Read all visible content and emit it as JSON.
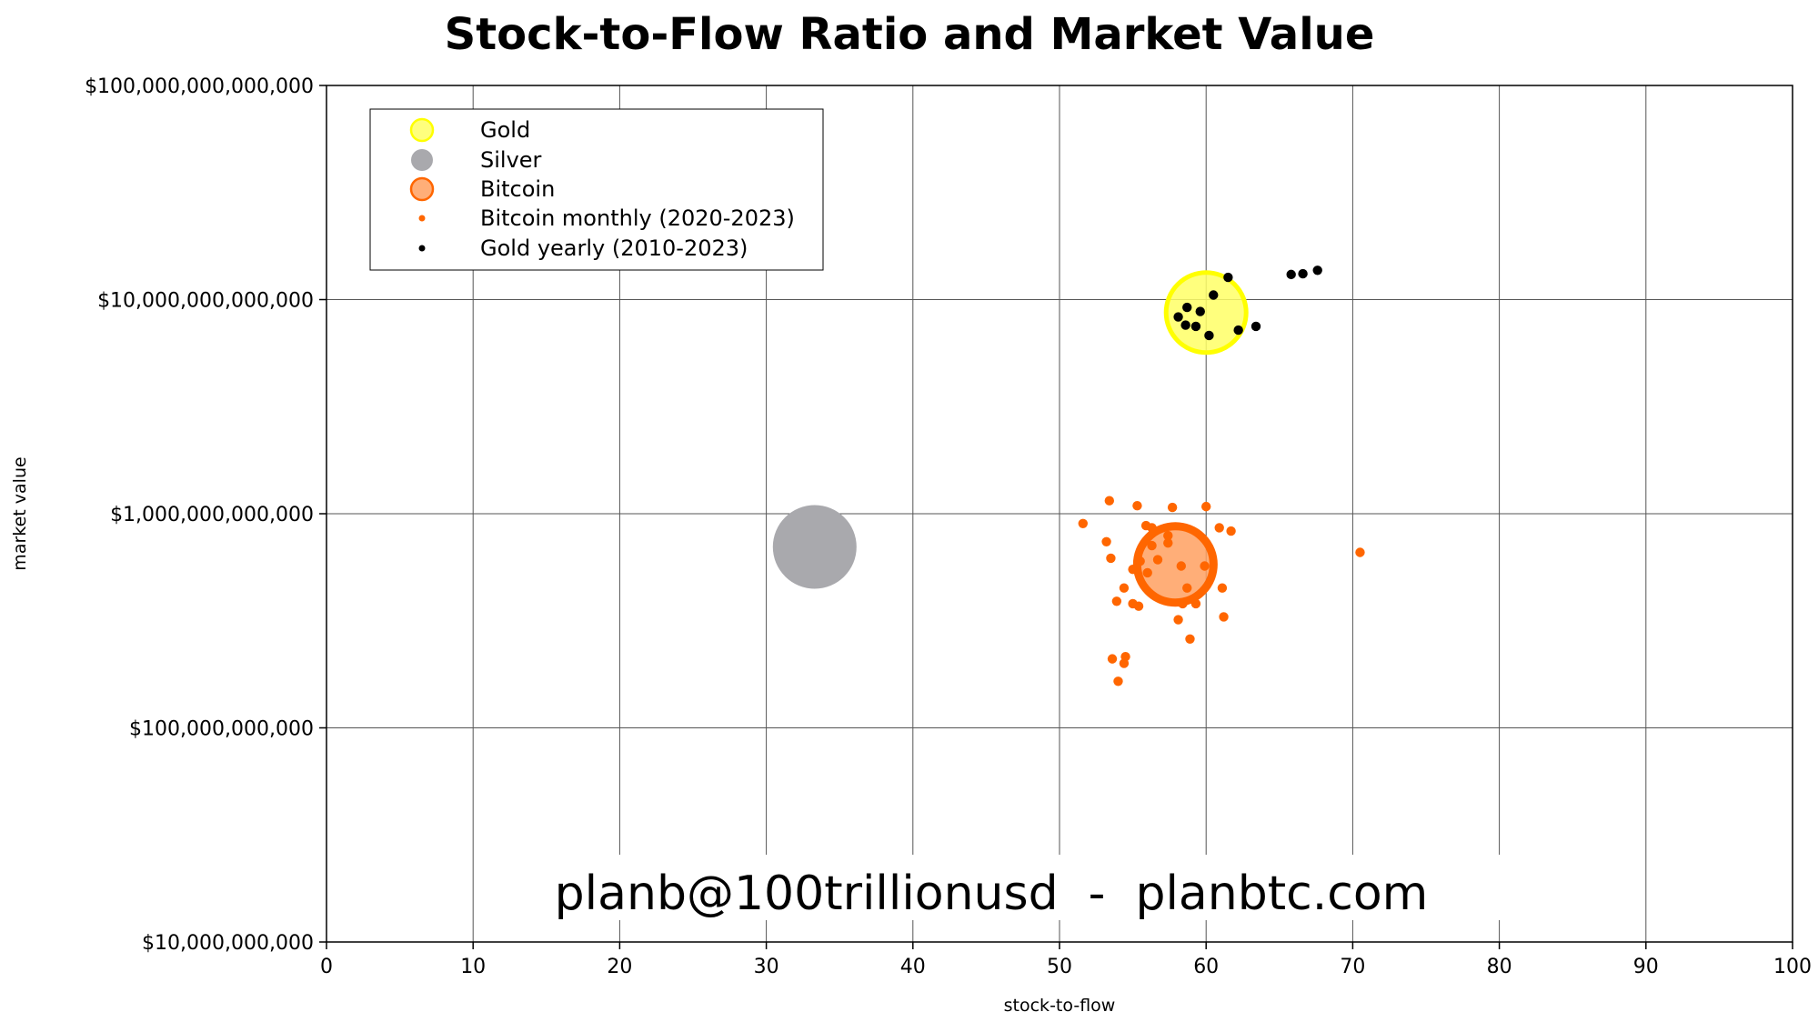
{
  "chart_data": {
    "type": "scatter",
    "title": "Stock-to-Flow Ratio and Market Value",
    "xlabel": "stock-to-flow",
    "ylabel": "market value",
    "xlim": [
      0,
      100
    ],
    "ylim": [
      10000000000,
      100000000000000
    ],
    "y_scale": "log",
    "grid": true,
    "legend_position": "top-left",
    "x_ticks": [
      "0",
      "10",
      "20",
      "30",
      "40",
      "50",
      "60",
      "70",
      "80",
      "90",
      "100"
    ],
    "y_ticks": [
      "$100,000,000,000,000",
      "$10,000,000,000,000",
      "$1,000,000,000,000",
      "$100,000,000,000",
      "$10,000,000,000"
    ],
    "watermark": "planb@100trillionusd  -  planbtc.com",
    "legend": [
      {
        "label": "Gold",
        "color": "#ffff66",
        "edge": "#ffff00",
        "marker": "large-circle"
      },
      {
        "label": "Silver",
        "color": "#a9a9ad",
        "edge": "#a9a9ad",
        "marker": "large-circle"
      },
      {
        "label": "Bitcoin",
        "color": "#ffa060",
        "edge": "#ff6600",
        "marker": "large-circle"
      },
      {
        "label": "Bitcoin monthly (2020-2023)",
        "color": "#ff6600",
        "marker": "small-dot"
      },
      {
        "label": "Gold yearly (2010-2023)",
        "color": "#000000",
        "marker": "small-dot"
      }
    ],
    "series": [
      {
        "name": "Gold",
        "type": "bubble",
        "color": "#ffff66",
        "edge": "#ffff00",
        "points": [
          {
            "x": 60.0,
            "y": 8700000000000
          }
        ]
      },
      {
        "name": "Silver",
        "type": "bubble",
        "color": "#a9a9ad",
        "edge": "#a9a9ad",
        "points": [
          {
            "x": 33.3,
            "y": 700000000000
          }
        ]
      },
      {
        "name": "Bitcoin",
        "type": "bubble",
        "color": "#ffa060",
        "edge": "#ff6600",
        "points": [
          {
            "x": 57.9,
            "y": 580000000000
          }
        ]
      },
      {
        "name": "Bitcoin monthly (2020-2023)",
        "type": "dot",
        "color": "#ff6600",
        "points": [
          {
            "x": 53.4,
            "y": 1150000000000
          },
          {
            "x": 55.3,
            "y": 1090000000000
          },
          {
            "x": 57.7,
            "y": 1070000000000
          },
          {
            "x": 60.0,
            "y": 1080000000000
          },
          {
            "x": 51.6,
            "y": 900000000000
          },
          {
            "x": 55.9,
            "y": 880000000000
          },
          {
            "x": 56.3,
            "y": 860000000000
          },
          {
            "x": 60.9,
            "y": 860000000000
          },
          {
            "x": 61.7,
            "y": 830000000000
          },
          {
            "x": 57.4,
            "y": 790000000000
          },
          {
            "x": 53.2,
            "y": 740000000000
          },
          {
            "x": 57.4,
            "y": 730000000000
          },
          {
            "x": 56.3,
            "y": 710000000000
          },
          {
            "x": 70.5,
            "y": 660000000000
          },
          {
            "x": 53.5,
            "y": 620000000000
          },
          {
            "x": 56.7,
            "y": 610000000000
          },
          {
            "x": 55.5,
            "y": 600000000000
          },
          {
            "x": 58.3,
            "y": 570000000000
          },
          {
            "x": 59.9,
            "y": 570000000000
          },
          {
            "x": 55.0,
            "y": 550000000000
          },
          {
            "x": 56.0,
            "y": 530000000000
          },
          {
            "x": 54.4,
            "y": 450000000000
          },
          {
            "x": 58.7,
            "y": 450000000000
          },
          {
            "x": 61.1,
            "y": 450000000000
          },
          {
            "x": 53.9,
            "y": 390000000000
          },
          {
            "x": 55.0,
            "y": 380000000000
          },
          {
            "x": 58.4,
            "y": 380000000000
          },
          {
            "x": 59.3,
            "y": 380000000000
          },
          {
            "x": 55.4,
            "y": 370000000000
          },
          {
            "x": 61.2,
            "y": 330000000000
          },
          {
            "x": 58.1,
            "y": 320000000000
          },
          {
            "x": 58.9,
            "y": 260000000000
          },
          {
            "x": 54.5,
            "y": 215000000000
          },
          {
            "x": 53.6,
            "y": 210000000000
          },
          {
            "x": 54.4,
            "y": 200000000000
          },
          {
            "x": 54.0,
            "y": 165000000000
          }
        ]
      },
      {
        "name": "Gold yearly (2010-2023)",
        "type": "dot",
        "color": "#000000",
        "points": [
          {
            "x": 67.6,
            "y": 13700000000000
          },
          {
            "x": 66.6,
            "y": 13200000000000
          },
          {
            "x": 65.8,
            "y": 13100000000000
          },
          {
            "x": 61.5,
            "y": 12700000000000
          },
          {
            "x": 60.5,
            "y": 10500000000000
          },
          {
            "x": 58.7,
            "y": 9200000000000
          },
          {
            "x": 59.6,
            "y": 8800000000000
          },
          {
            "x": 58.1,
            "y": 8300000000000
          },
          {
            "x": 58.6,
            "y": 7600000000000
          },
          {
            "x": 59.3,
            "y": 7500000000000
          },
          {
            "x": 63.4,
            "y": 7500000000000
          },
          {
            "x": 62.2,
            "y": 7200000000000
          },
          {
            "x": 60.2,
            "y": 6800000000000
          }
        ]
      }
    ]
  }
}
